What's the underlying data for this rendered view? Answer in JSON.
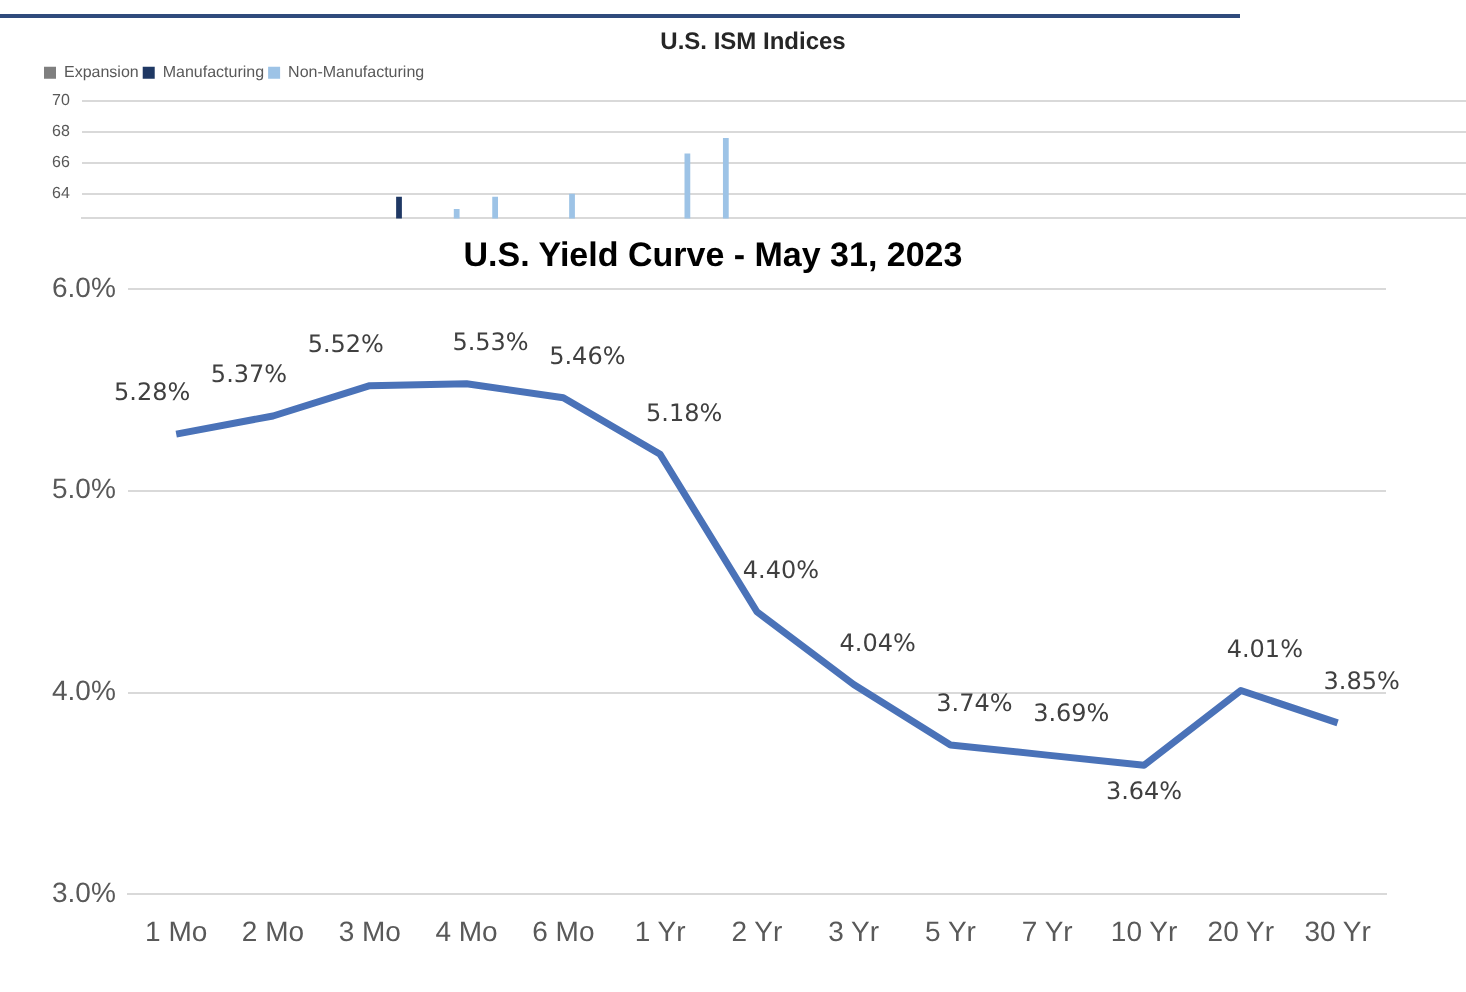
{
  "chart_data": [
    {
      "type": "bar",
      "title": "U.S. ISM Indices",
      "categories": [
        null,
        null,
        null,
        null,
        null,
        null,
        null,
        null,
        null,
        null,
        null,
        null,
        null,
        null,
        null,
        null,
        null,
        null,
        null,
        null,
        null,
        null,
        null,
        null,
        null,
        null,
        null,
        null,
        null,
        null,
        null,
        null,
        null,
        null,
        null,
        null
      ],
      "series": [
        {
          "name": "Expansion",
          "type": "line",
          "color": "#7f7f7f",
          "values": [
            null,
            null,
            null,
            null,
            null,
            null,
            null,
            null,
            null,
            null,
            null,
            null,
            null,
            null,
            null,
            null,
            null,
            null,
            null,
            null,
            null,
            null,
            null,
            null,
            null,
            null,
            null,
            null,
            null,
            null,
            null,
            null,
            null,
            null,
            null,
            null
          ]
        },
        {
          "name": "Manufacturing",
          "color": "#1f3864",
          "values": [
            null,
            null,
            null,
            null,
            null,
            null,
            null,
            null,
            63.8,
            null,
            null,
            null,
            null,
            null,
            null,
            null,
            null,
            null,
            null,
            null,
            null,
            null,
            null,
            null,
            null,
            null,
            null,
            null,
            null,
            null,
            null,
            null,
            null,
            null,
            null,
            null
          ]
        },
        {
          "name": "Non-Manufacturing",
          "color": "#9dc3e6",
          "values": [
            null,
            null,
            null,
            null,
            null,
            null,
            null,
            null,
            null,
            63.0,
            63.8,
            null,
            64.0,
            null,
            null,
            66.6,
            67.6,
            null,
            null,
            null,
            null,
            null,
            null,
            null,
            null,
            null,
            null,
            null,
            null,
            null,
            null,
            null,
            null,
            null,
            null,
            null
          ]
        }
      ],
      "ylim": [
        62.4,
        70
      ],
      "yticks": [
        64,
        66,
        68,
        70
      ],
      "grid": "y",
      "legend": "top left",
      "tick_labels": "y"
    },
    {
      "type": "line",
      "title": "U.S. Yield Curve - May 31, 2023",
      "categories": [
        "1 Mo",
        "2 Mo",
        "3 Mo",
        "4 Mo",
        "6 Mo",
        "1 Yr",
        "2 Yr",
        "3 Yr",
        "5 Yr",
        "7 Yr",
        "10 Yr",
        "20 Yr",
        "30 Yr"
      ],
      "series": [
        {
          "color": "#4a72b8",
          "values": [
            5.28,
            5.37,
            5.52,
            5.53,
            5.46,
            5.18,
            4.4,
            4.04,
            3.74,
            3.69,
            3.64,
            4.01,
            3.85
          ],
          "value_labels": [
            "5.28%",
            "5.37%",
            "5.52%",
            "5.53%",
            "5.46%",
            "5.18%",
            "4.40%",
            "4.04%",
            "3.74%",
            "3.69%",
            "3.64%",
            "4.01%",
            "3.85%"
          ]
        }
      ],
      "ylim": [
        3,
        6
      ],
      "yticks": [
        {
          "value": 3,
          "label": "3.0%"
        },
        {
          "value": 4,
          "label": "4.0%"
        },
        {
          "value": 5,
          "label": "5.0%"
        },
        {
          "value": 6,
          "label": "6.0%"
        }
      ],
      "grid": "y",
      "marker": "none",
      "line_style": "solid"
    }
  ]
}
